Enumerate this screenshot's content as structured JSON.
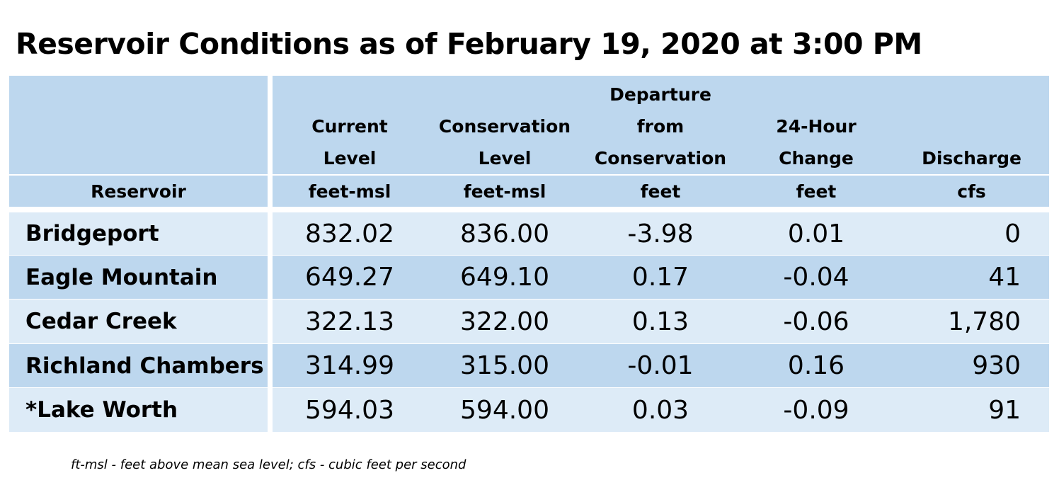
{
  "title": "Reservoir Conditions as of February 19, 2020 at 3:00 PM",
  "columns": [
    {
      "header_lines": [
        "",
        "",
        ""
      ],
      "label": "Reservoir",
      "unit": ""
    },
    {
      "header_lines": [
        "",
        "Current",
        "Level"
      ],
      "unit": "feet-msl"
    },
    {
      "header_lines": [
        "",
        "Conservation",
        "Level"
      ],
      "unit": "feet-msl"
    },
    {
      "header_lines": [
        "Departure",
        "from",
        "Conservation"
      ],
      "unit": "feet"
    },
    {
      "header_lines": [
        "",
        "24-Hour",
        "Change"
      ],
      "unit": "feet"
    },
    {
      "header_lines": [
        "",
        "",
        "Discharge"
      ],
      "unit": "cfs"
    }
  ],
  "rows": [
    {
      "name": "Bridgeport",
      "current": "832.02",
      "conservation": "836.00",
      "departure": "-3.98",
      "change": "0.01",
      "discharge": "0"
    },
    {
      "name": "Eagle Mountain",
      "current": "649.27",
      "conservation": "649.10",
      "departure": "0.17",
      "change": "-0.04",
      "discharge": "41"
    },
    {
      "name": "Cedar Creek",
      "current": "322.13",
      "conservation": "322.00",
      "departure": "0.13",
      "change": "-0.06",
      "discharge": "1,780"
    },
    {
      "name": "Richland Chambers",
      "current": "314.99",
      "conservation": "315.00",
      "departure": "-0.01",
      "change": "0.16",
      "discharge": "930"
    },
    {
      "name": "*Lake Worth",
      "current": "594.03",
      "conservation": "594.00",
      "departure": "0.03",
      "change": "-0.09",
      "discharge": "91"
    }
  ],
  "footnote": "ft-msl - feet above mean sea level; cfs - cubic feet per second",
  "colors": {
    "header_bg": "#bdd7ee",
    "row_light": "#ddebf7",
    "row_dark": "#bdd7ee",
    "grid": "#ffffff"
  }
}
